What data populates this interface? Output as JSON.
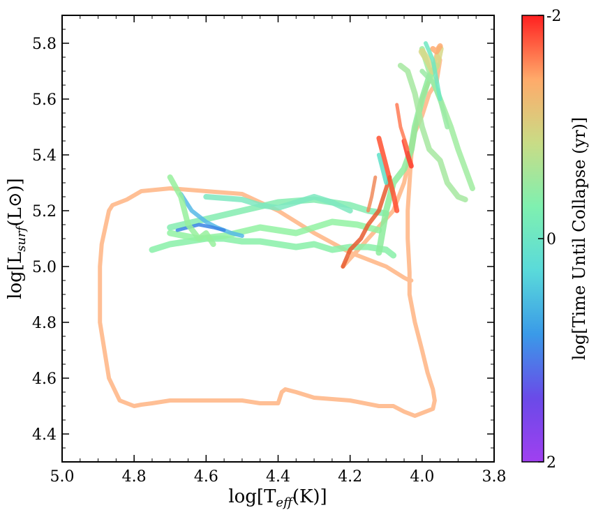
{
  "chart_data": {
    "type": "line",
    "xlabel_main": "log[T",
    "xlabel_sub": "eff",
    "xlabel_tail": "(K)]",
    "ylabel_main": "log[L",
    "ylabel_sub": "surf",
    "ylabel_tail": "(L⊙)]",
    "xlim": [
      5.0,
      3.8
    ],
    "ylim": [
      4.3,
      5.9
    ],
    "xticks": [
      5.0,
      4.8,
      4.6,
      4.4,
      4.2,
      4.0,
      3.8
    ],
    "xtick_labels": [
      "5.0",
      "4.8",
      "4.6",
      "4.4",
      "4.2",
      "4.0",
      "3.8"
    ],
    "yticks": [
      4.4,
      4.6,
      4.8,
      5.0,
      5.2,
      5.4,
      5.6,
      5.8
    ],
    "ytick_labels": [
      "4.4",
      "4.6",
      "4.8",
      "5.0",
      "5.2",
      "5.4",
      "5.6",
      "5.8"
    ],
    "colorbar": {
      "label": "log[Time Until Collapse (yr)]",
      "range": [
        -2,
        2
      ],
      "ticks": [
        -2,
        0,
        2
      ],
      "tick_labels": [
        "-2",
        "0",
        "2"
      ],
      "colors": [
        "#ff2020",
        "#ffaa6a",
        "#c9dc86",
        "#7ff0b0",
        "#5adada",
        "#3a9ae8",
        "#6a4ae8",
        "#a040f0"
      ]
    },
    "series": [
      {
        "color": "#ffb482",
        "width": 6,
        "x": [
          4.22,
          4.08,
          4.05,
          4.04,
          4.03,
          4.0,
          3.97,
          3.96,
          3.95,
          3.96,
          3.98,
          4.0,
          4.02,
          4.03,
          4.035,
          4.04,
          4.04,
          4.035,
          4.035,
          4.02,
          4.0,
          3.985,
          3.97,
          3.965,
          3.97,
          3.99,
          4.02,
          4.05,
          4.08,
          4.12,
          4.2,
          4.3,
          4.35,
          4.38,
          4.39,
          4.4,
          4.45,
          4.5,
          4.6,
          4.7,
          4.75,
          4.78,
          4.8,
          4.84,
          4.87,
          4.895,
          4.895,
          4.89,
          4.88,
          4.87,
          4.86,
          4.82,
          4.78,
          4.7,
          4.6,
          4.5,
          4.4,
          4.3,
          4.2,
          4.1,
          4.05,
          4.035,
          4.03
        ],
        "y": [
          5.0,
          5.2,
          5.3,
          5.36,
          5.44,
          5.6,
          5.7,
          5.76,
          5.74,
          5.66,
          5.62,
          5.54,
          5.48,
          5.4,
          5.3,
          5.2,
          5.1,
          4.98,
          4.9,
          4.8,
          4.7,
          4.62,
          4.56,
          4.52,
          4.49,
          4.48,
          4.465,
          4.48,
          4.5,
          4.5,
          4.52,
          4.53,
          4.55,
          4.56,
          4.55,
          4.51,
          4.51,
          4.52,
          4.52,
          4.52,
          4.51,
          4.505,
          4.5,
          4.52,
          4.6,
          4.8,
          5.0,
          5.08,
          5.14,
          5.2,
          5.22,
          5.24,
          5.27,
          5.28,
          5.27,
          5.26,
          5.2,
          5.12,
          5.05,
          5.0,
          4.96,
          4.95,
          4.95
        ]
      },
      {
        "color": "#88f0a8",
        "width": 9,
        "x": [
          4.75,
          4.7,
          4.6,
          4.55,
          4.5,
          4.45,
          4.4,
          4.35,
          4.3,
          4.25,
          4.2,
          4.15,
          4.1,
          4.08
        ],
        "y": [
          5.06,
          5.08,
          5.1,
          5.1,
          5.09,
          5.09,
          5.08,
          5.07,
          5.08,
          5.06,
          5.07,
          5.07,
          5.06,
          5.04
        ]
      },
      {
        "color": "#84ecb0",
        "width": 9,
        "x": [
          4.7,
          4.6,
          4.5,
          4.4,
          4.3,
          4.2,
          4.15,
          4.1
        ],
        "y": [
          5.14,
          5.17,
          5.2,
          5.23,
          5.24,
          5.22,
          5.2,
          5.19
        ]
      },
      {
        "color": "#92f2a2",
        "width": 9,
        "x": [
          4.7,
          4.62,
          4.55,
          4.45,
          4.35,
          4.25,
          4.18,
          4.12
        ],
        "y": [
          5.12,
          5.1,
          5.11,
          5.14,
          5.12,
          5.16,
          5.15,
          5.13
        ]
      },
      {
        "color": "#7ee8c0",
        "width": 8,
        "x": [
          4.6,
          4.5,
          4.45,
          4.4,
          4.3,
          4.25,
          4.2
        ],
        "y": [
          5.25,
          5.24,
          5.22,
          5.21,
          5.25,
          5.23,
          5.2
        ]
      },
      {
        "color": "#56b8e6",
        "width": 6,
        "x": [
          4.67,
          4.64,
          4.6,
          4.57,
          4.53,
          4.5
        ],
        "y": [
          5.26,
          5.2,
          5.16,
          5.14,
          5.12,
          5.11
        ]
      },
      {
        "color": "#3a84e4",
        "width": 5,
        "x": [
          4.68,
          4.62,
          4.58,
          4.55
        ],
        "y": [
          5.13,
          5.15,
          5.14,
          5.13
        ]
      },
      {
        "color": "#96f09c",
        "width": 8,
        "x": [
          4.7,
          4.67,
          4.65,
          4.62,
          4.6,
          4.58
        ],
        "y": [
          5.32,
          5.25,
          5.15,
          5.1,
          5.12,
          5.08
        ]
      },
      {
        "color": "#8cec9c",
        "width": 9,
        "x": [
          4.12,
          4.1,
          4.08,
          4.05,
          4.03,
          4.02,
          4.0,
          3.98,
          3.96
        ],
        "y": [
          5.05,
          5.2,
          5.3,
          5.35,
          5.42,
          5.5,
          5.6,
          5.68,
          5.72
        ]
      },
      {
        "color": "#a0eca0",
        "width": 8,
        "x": [
          4.0,
          3.98,
          3.95,
          3.92,
          3.9,
          3.88,
          3.86
        ],
        "y": [
          5.78,
          5.7,
          5.6,
          5.5,
          5.42,
          5.35,
          5.28
        ]
      },
      {
        "color": "#a6e8a0",
        "width": 8,
        "x": [
          4.06,
          4.04,
          4.02,
          4.0,
          3.98,
          3.95,
          3.93,
          3.9,
          3.88
        ],
        "y": [
          5.72,
          5.7,
          5.62,
          5.5,
          5.42,
          5.38,
          5.3,
          5.25,
          5.24
        ]
      },
      {
        "color": "#d8d888",
        "width": 10,
        "x": [
          4.0,
          3.985,
          3.97,
          3.96,
          3.95
        ],
        "y": [
          5.77,
          5.74,
          5.7,
          5.72,
          5.78
        ]
      },
      {
        "color": "#ffaa70",
        "width": 8,
        "x": [
          3.97,
          3.96,
          3.95
        ],
        "y": [
          5.78,
          5.77,
          5.79
        ]
      },
      {
        "color": "#ff5030",
        "width": 7,
        "x": [
          4.12,
          4.1,
          4.08,
          4.07
        ],
        "y": [
          5.46,
          5.36,
          5.26,
          5.2
        ]
      },
      {
        "color": "#ff3a2a",
        "width": 7,
        "x": [
          4.05,
          4.04,
          4.03
        ],
        "y": [
          5.45,
          5.4,
          5.36
        ]
      },
      {
        "color": "#ff7a55",
        "width": 5,
        "x": [
          4.07,
          4.06,
          4.04
        ],
        "y": [
          5.58,
          5.5,
          5.42
        ]
      },
      {
        "color": "#e85c30",
        "width": 6,
        "x": [
          4.22,
          4.2,
          4.17,
          4.15,
          4.12,
          4.1,
          4.09
        ],
        "y": [
          5.0,
          5.06,
          5.1,
          5.15,
          5.2,
          5.28,
          5.32
        ]
      },
      {
        "color": "#5ee0c8",
        "width": 6,
        "x": [
          4.12,
          4.11,
          4.1
        ],
        "y": [
          5.4,
          5.35,
          5.3
        ]
      },
      {
        "color": "#f08a5a",
        "width": 5,
        "x": [
          4.15,
          4.14,
          4.13
        ],
        "y": [
          5.2,
          5.25,
          5.32
        ]
      },
      {
        "color": "#9aeaa4",
        "width": 7,
        "x": [
          4.0,
          3.97,
          3.95,
          3.94,
          3.93
        ],
        "y": [
          5.7,
          5.66,
          5.6,
          5.55,
          5.5
        ]
      },
      {
        "color": "#6ee8c2",
        "width": 6,
        "x": [
          3.99,
          3.97,
          3.95
        ],
        "y": [
          5.8,
          5.74,
          5.6
        ]
      }
    ]
  }
}
